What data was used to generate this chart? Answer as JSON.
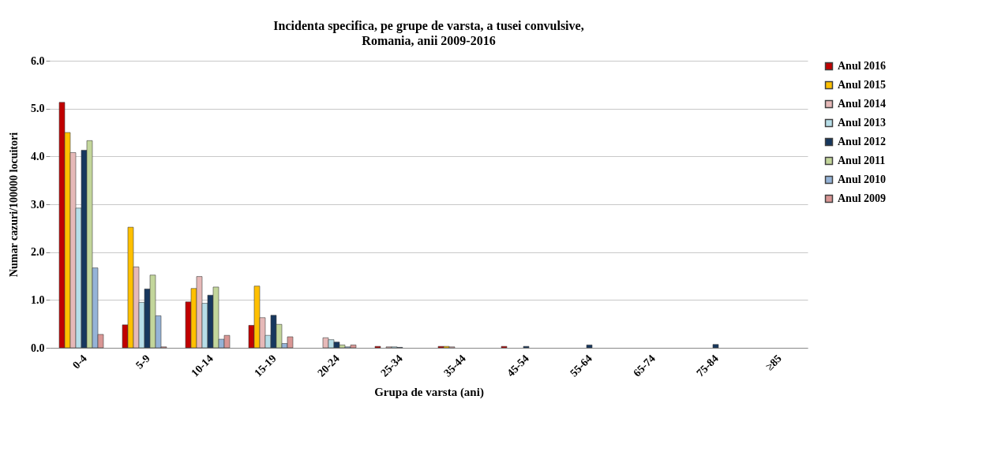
{
  "chart_data": {
    "type": "bar",
    "title": "Incidenta specifica, pe grupe de varsta, a tusei convulsive,",
    "subtitle": "Romania, anii 2009-2016",
    "xlabel": "Grupa de varsta (ani)",
    "ylabel": "Numar cazuri/100000 locuitori",
    "categories": [
      "0-4",
      "5-9",
      "10-14",
      "15-19",
      "20-24",
      "25-34",
      "35-44",
      "45-54",
      "55-64",
      "65-74",
      "75-84",
      "≥85"
    ],
    "series": [
      {
        "name": "Anul 2016",
        "color": "#c00000",
        "values": [
          5.13,
          0.48,
          0.96,
          0.47,
          0,
          0.03,
          0.03,
          0.03,
          0,
          0,
          0,
          0
        ]
      },
      {
        "name": "Anul 2015",
        "color": "#ffc000",
        "values": [
          4.5,
          2.52,
          1.24,
          1.29,
          0,
          0,
          0.03,
          0,
          0,
          0,
          0,
          0
        ]
      },
      {
        "name": "Anul 2014",
        "color": "#e6b9b8",
        "values": [
          4.08,
          1.69,
          1.49,
          0.63,
          0.21,
          0.02,
          0.02,
          0,
          0,
          0,
          0,
          0
        ]
      },
      {
        "name": "Anul 2013",
        "color": "#b7dee8",
        "values": [
          2.92,
          0.95,
          0.93,
          0.26,
          0.17,
          0.02,
          0,
          0,
          0,
          0,
          0,
          0
        ]
      },
      {
        "name": "Anul 2012",
        "color": "#17375e",
        "values": [
          4.13,
          1.23,
          1.1,
          0.68,
          0.12,
          0.01,
          0,
          0.03,
          0.06,
          0,
          0.07,
          0
        ]
      },
      {
        "name": "Anul 2011",
        "color": "#c3d69b",
        "values": [
          4.33,
          1.52,
          1.27,
          0.49,
          0.06,
          null,
          0,
          0,
          0,
          0,
          0,
          0
        ]
      },
      {
        "name": "Anul 2010",
        "color": "#95b3d7",
        "values": [
          1.67,
          0.67,
          0.18,
          0.09,
          0.02,
          0,
          0,
          0,
          0,
          0,
          0,
          0
        ]
      },
      {
        "name": "Anul 2009",
        "color": "#d99694",
        "values": [
          0.28,
          0.02,
          0.26,
          0.23,
          0.06,
          null,
          0,
          0,
          0,
          0,
          0,
          0
        ]
      }
    ],
    "ylim": [
      0,
      6
    ],
    "yticks": [
      {
        "value": 0,
        "label": "0.0"
      },
      {
        "value": 1,
        "label": "1.0"
      },
      {
        "value": 2,
        "label": "2.0"
      },
      {
        "value": 3,
        "label": "3.0"
      },
      {
        "value": 4,
        "label": "4.0"
      },
      {
        "value": 5,
        "label": "5.0"
      },
      {
        "value": 6,
        "label": "6.0"
      }
    ],
    "grid": "y",
    "legend": "right"
  }
}
